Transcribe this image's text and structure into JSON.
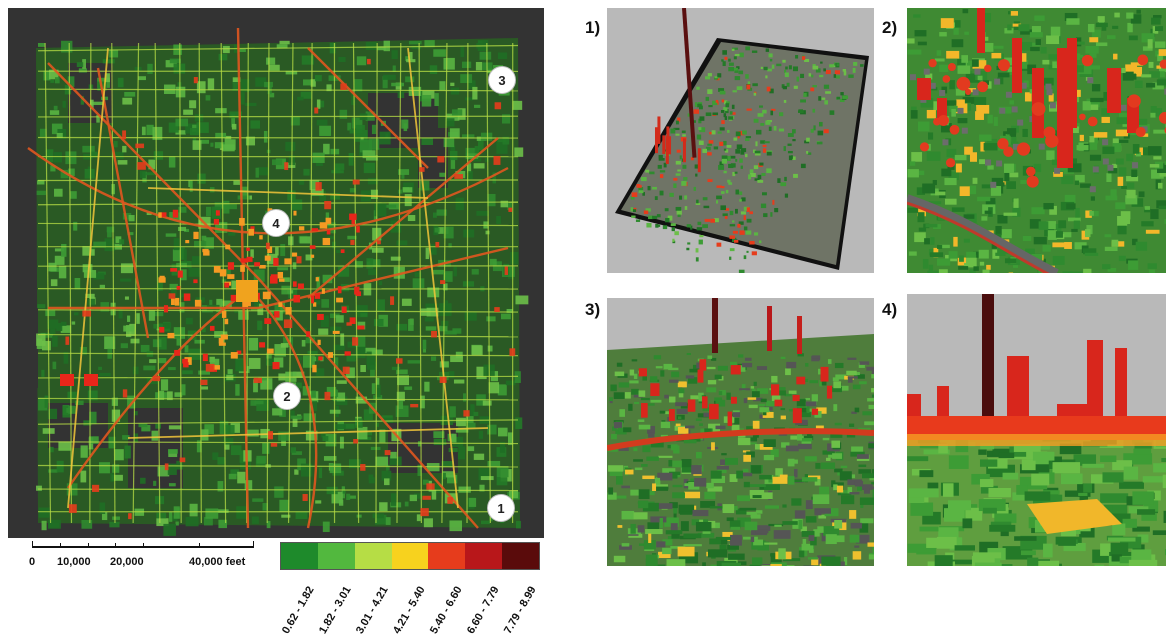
{
  "map": {
    "markers": [
      {
        "id": "1",
        "label": "1"
      },
      {
        "id": "2",
        "label": "2"
      },
      {
        "id": "3",
        "label": "3"
      },
      {
        "id": "4",
        "label": "4"
      }
    ],
    "colors": {
      "background": "#333333",
      "low": "#2f8f2f",
      "high": "#e8261a"
    }
  },
  "scale_bar": {
    "ticks": [
      "0",
      "10,000",
      "20,000",
      "40,000 feet"
    ]
  },
  "legend": {
    "classes": [
      {
        "label": "0.62 - 1.82",
        "color": "#1e8a2b"
      },
      {
        "label": "1.82 - 3.01",
        "color": "#52b83e"
      },
      {
        "label": "3.01 - 4.21",
        "color": "#b6dd45"
      },
      {
        "label": "4.21 - 5.40",
        "color": "#f7d21e"
      },
      {
        "label": "5.40 - 6.60",
        "color": "#e63c1c"
      },
      {
        "label": "6.60 - 7.79",
        "color": "#b8171a"
      },
      {
        "label": "7.79 - 8.99",
        "color": "#5a0b0b"
      }
    ]
  },
  "panels": [
    {
      "label": "1)",
      "view": "overview"
    },
    {
      "label": "2)",
      "view": "area-2"
    },
    {
      "label": "3)",
      "view": "area-3"
    },
    {
      "label": "4)",
      "view": "area-4"
    }
  ]
}
